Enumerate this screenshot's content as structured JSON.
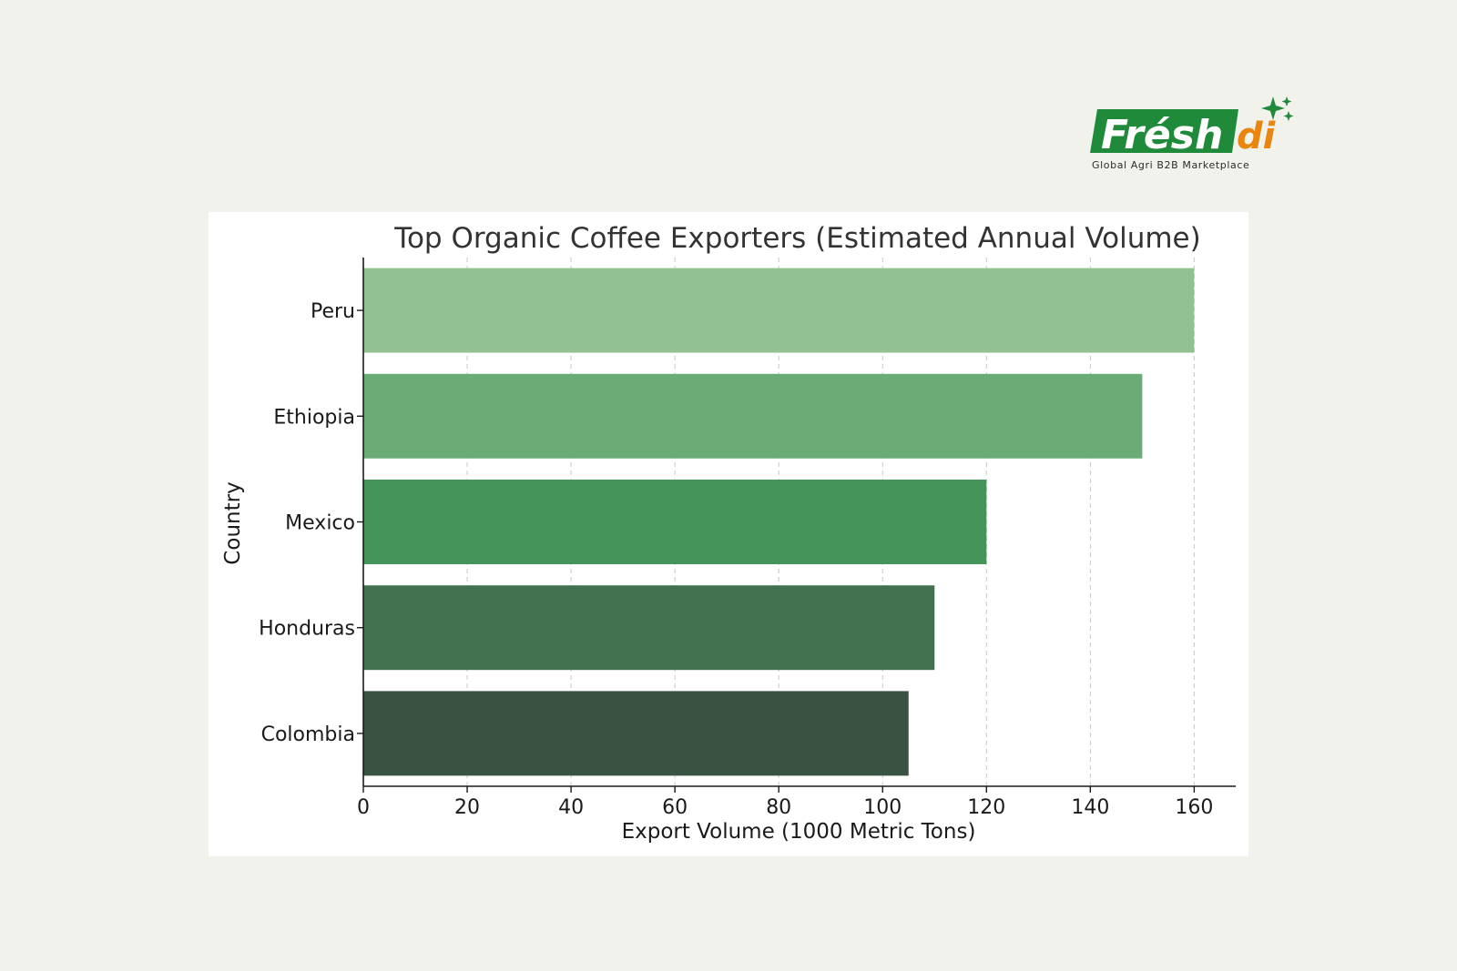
{
  "logo": {
    "brand_main": "Frésh",
    "brand_accent": "di",
    "tagline": "Global Agri B2B Marketplace",
    "colors": {
      "green": "#1f8a3a",
      "orange": "#e9860f",
      "text": "#2b2b2b"
    }
  },
  "chart_data": {
    "type": "bar",
    "orientation": "horizontal",
    "title": "Top Organic Coffee Exporters (Estimated Annual Volume)",
    "xlabel": "Export Volume (1000 Metric Tons)",
    "ylabel": "Country",
    "categories": [
      "Peru",
      "Ethiopia",
      "Mexico",
      "Honduras",
      "Colombia"
    ],
    "values": [
      160,
      150,
      120,
      110,
      105
    ],
    "bar_colors": [
      "#92c293",
      "#6aab76",
      "#45955b",
      "#41714f",
      "#3a5242"
    ],
    "xlim": [
      0,
      168
    ],
    "xticks": [
      0,
      20,
      40,
      60,
      80,
      100,
      120,
      140,
      160
    ],
    "grid": "x-dashed",
    "legend": "none"
  }
}
